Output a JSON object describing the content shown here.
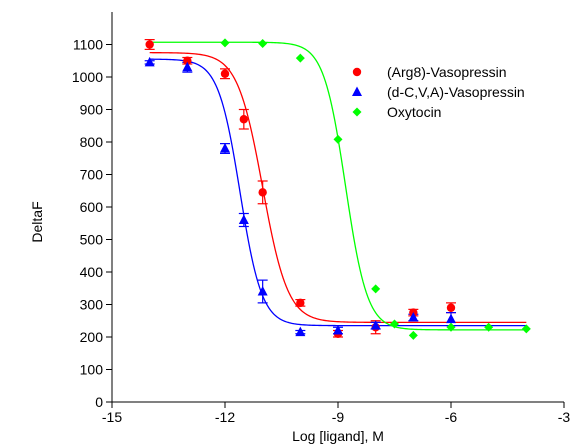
{
  "chart_data": {
    "type": "scatter",
    "xlabel": "Log [ligand], M",
    "ylabel": "DeltaF",
    "xlim": [
      -15,
      -3
    ],
    "ylim": [
      0,
      1200
    ],
    "xticks": [
      -15,
      -12,
      -9,
      -6,
      -3
    ],
    "yticks": [
      0,
      100,
      200,
      300,
      400,
      500,
      600,
      700,
      800,
      900,
      1000,
      1100
    ],
    "legend_position": "upper-right",
    "grid": false,
    "series": [
      {
        "name": "(Arg8)-Vasopressin",
        "color": "#ff0000",
        "marker": "circle",
        "points": [
          {
            "x": -14,
            "y": 1100,
            "err": 15
          },
          {
            "x": -13,
            "y": 1050,
            "err": 10
          },
          {
            "x": -12,
            "y": 1010,
            "err": 15
          },
          {
            "x": -11.5,
            "y": 870,
            "err": 30
          },
          {
            "x": -11,
            "y": 645,
            "err": 35
          },
          {
            "x": -10,
            "y": 305,
            "err": 10
          },
          {
            "x": -9,
            "y": 210,
            "err": 10
          },
          {
            "x": -8,
            "y": 230,
            "err": 20
          },
          {
            "x": -7,
            "y": 275,
            "err": 10
          },
          {
            "x": -6,
            "y": 290,
            "err": 15
          }
        ],
        "fit": {
          "top": 1075,
          "bottom": 245,
          "logec50": -11.0,
          "hill": 1.3
        }
      },
      {
        "name": "(d-C,V,A)-Vasopressin",
        "color": "#0000ff",
        "marker": "triangle",
        "points": [
          {
            "x": -14,
            "y": 1045,
            "err": 5
          },
          {
            "x": -13,
            "y": 1030,
            "err": 15
          },
          {
            "x": -12,
            "y": 780,
            "err": 15
          },
          {
            "x": -11.5,
            "y": 560,
            "err": 20
          },
          {
            "x": -11,
            "y": 340,
            "err": 35
          },
          {
            "x": -10,
            "y": 215,
            "err": 5
          },
          {
            "x": -9,
            "y": 220,
            "err": 10
          },
          {
            "x": -8,
            "y": 235,
            "err": 10
          },
          {
            "x": -7,
            "y": 260,
            "err": 10
          },
          {
            "x": -6,
            "y": 255,
            "err": 20
          }
        ],
        "fit": {
          "top": 1055,
          "bottom": 235,
          "logec50": -11.6,
          "hill": 1.5
        }
      },
      {
        "name": "Oxytocin",
        "color": "#00ff00",
        "marker": "diamond",
        "points": [
          {
            "x": -12,
            "y": 1105
          },
          {
            "x": -11,
            "y": 1103
          },
          {
            "x": -10,
            "y": 1058
          },
          {
            "x": -9,
            "y": 808
          },
          {
            "x": -8,
            "y": 348
          },
          {
            "x": -7.5,
            "y": 240
          },
          {
            "x": -7,
            "y": 205
          },
          {
            "x": -6,
            "y": 230
          },
          {
            "x": -5,
            "y": 230
          },
          {
            "x": -4,
            "y": 225
          }
        ],
        "fit": {
          "top": 1107,
          "bottom": 222,
          "logec50": -8.8,
          "hill": 1.5
        }
      }
    ]
  }
}
